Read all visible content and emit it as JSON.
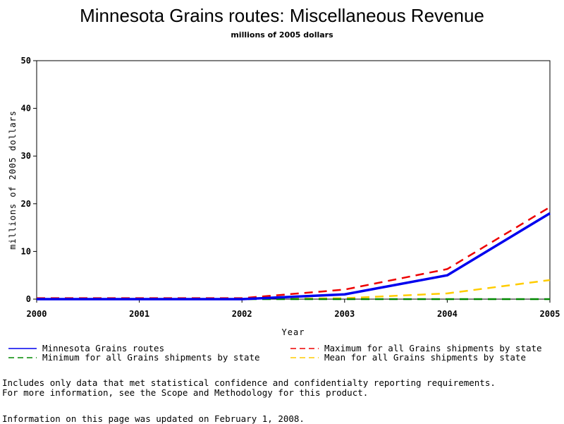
{
  "chart_data": {
    "type": "line",
    "title": "Minnesota Grains routes: Miscellaneous Revenue",
    "subtitle": "millions of 2005 dollars",
    "xlabel": "Year",
    "ylabel": "millions of 2005 dollars",
    "x": [
      2000,
      2001,
      2002,
      2003,
      2004,
      2005
    ],
    "xlim": [
      2000,
      2005
    ],
    "ylim": [
      0,
      50
    ],
    "yticks": [
      0,
      10,
      20,
      30,
      40,
      50
    ],
    "grid": false,
    "legend_position": "bottom",
    "series": [
      {
        "name": "Minnesota Grains routes",
        "values": [
          0,
          0,
          0,
          1.0,
          5.0,
          18.0
        ],
        "color": "#0000ee",
        "style": "solid"
      },
      {
        "name": "Maximum for all Grains shipments by state",
        "values": [
          0.2,
          0.2,
          0.2,
          2.0,
          6.3,
          19.3
        ],
        "color": "#ee0000",
        "style": "dashed"
      },
      {
        "name": "Minimum for all Grains shipments by state",
        "values": [
          0,
          0,
          0,
          0,
          0,
          0
        ],
        "color": "#008800",
        "style": "dashed"
      },
      {
        "name": "Mean for all Grains shipments by state",
        "values": [
          0,
          0,
          0,
          0.2,
          1.2,
          4.0
        ],
        "color": "#ffcc00",
        "style": "dashed"
      }
    ]
  },
  "notes": {
    "line1": "Includes only data that met statistical confidence and confidentialty reporting requirements.",
    "line2": "For more information, see the Scope and Methodology for this product.",
    "updated": "Information on this page was updated on February 1, 2008."
  }
}
